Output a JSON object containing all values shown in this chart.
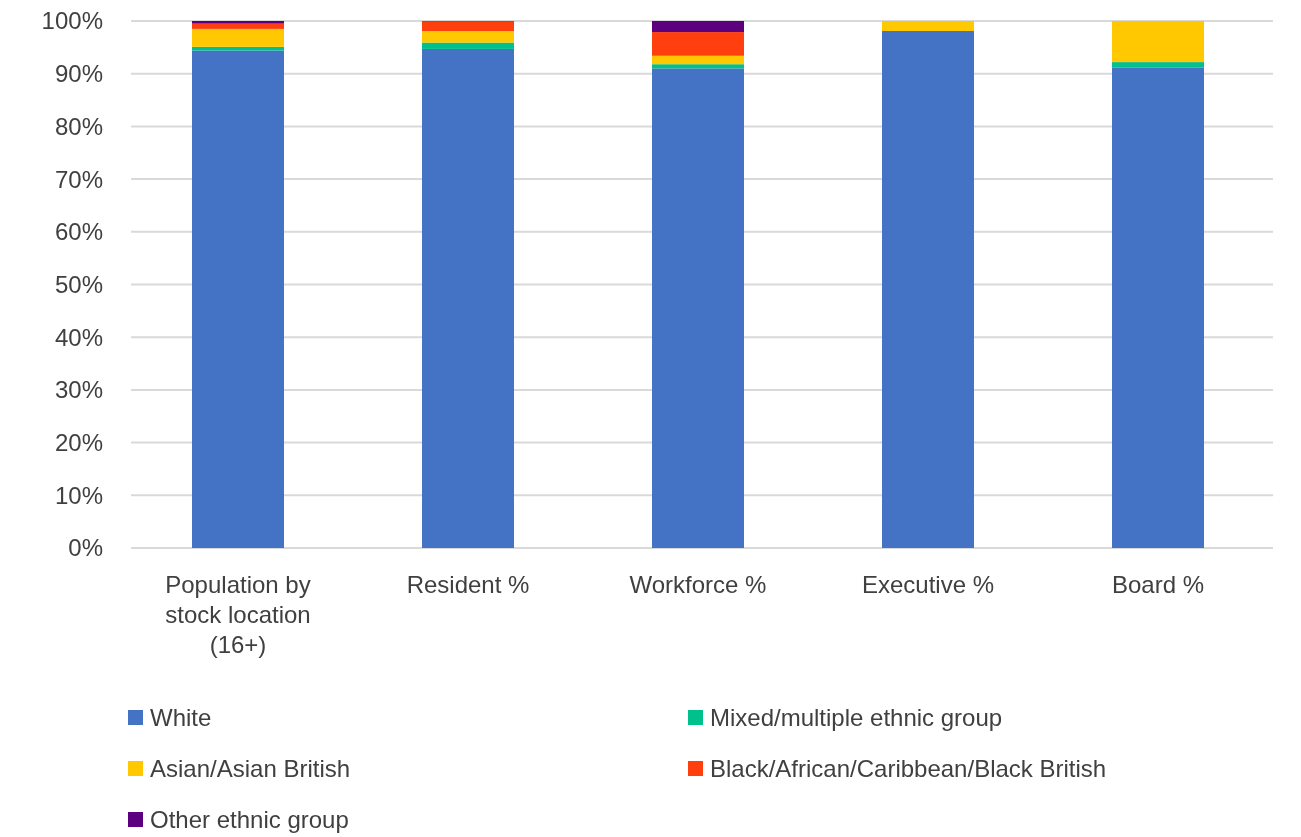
{
  "chart_data": {
    "type": "bar",
    "stacked": true,
    "categories": [
      "Population by stock location (16+)",
      "Resident %",
      "Workforce %",
      "Executive %",
      "Board %"
    ],
    "series": [
      {
        "name": "White",
        "color": "#4472c4",
        "values": [
          94.4,
          94.7,
          91.0,
          98.1,
          91.2
        ]
      },
      {
        "name": "Mixed/multiple ethnic group",
        "color": "#00c08b",
        "values": [
          0.7,
          1.2,
          0.8,
          0,
          1.0
        ]
      },
      {
        "name": "Asian/Asian British",
        "color": "#ffc800",
        "values": [
          3.4,
          2.2,
          1.6,
          1.9,
          7.8
        ]
      },
      {
        "name": "Black/African/Caribbean/Black British",
        "color": "#ff400e",
        "values": [
          1.0,
          1.8,
          4.5,
          0,
          0
        ]
      },
      {
        "name": "Other ethnic group",
        "color": "#5c007f",
        "values": [
          0.5,
          0.1,
          2.1,
          0,
          0
        ]
      }
    ],
    "ylim": [
      0,
      100
    ],
    "yticks": [
      {
        "value": 0,
        "label": "0%"
      },
      {
        "value": 10,
        "label": "10%"
      },
      {
        "value": 20,
        "label": "20%"
      },
      {
        "value": 30,
        "label": "30%"
      },
      {
        "value": 40,
        "label": "40%"
      },
      {
        "value": 50,
        "label": "50%"
      },
      {
        "value": 60,
        "label": "60%"
      },
      {
        "value": 70,
        "label": "70%"
      },
      {
        "value": 80,
        "label": "80%"
      },
      {
        "value": 90,
        "label": "90%"
      },
      {
        "value": 100,
        "label": "100%"
      }
    ],
    "grid": "y",
    "legend": "bottom"
  }
}
